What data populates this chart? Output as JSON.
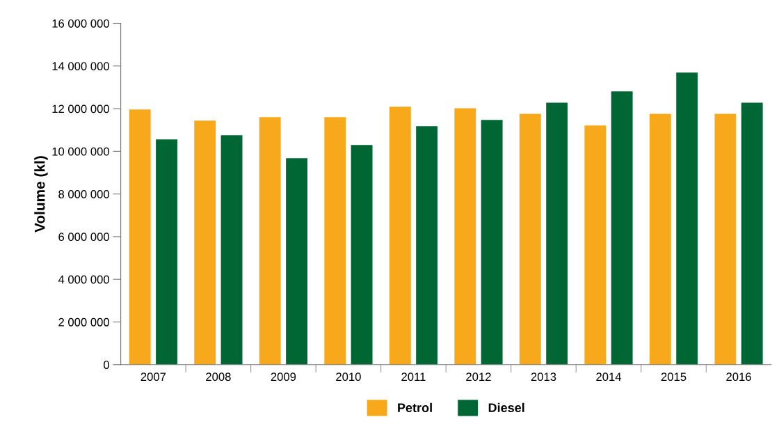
{
  "chart_data": {
    "type": "bar",
    "ylabel": "Volume (kl)",
    "categories": [
      "2007",
      "2008",
      "2009",
      "2010",
      "2011",
      "2012",
      "2013",
      "2014",
      "2015",
      "2016"
    ],
    "series": [
      {
        "name": "Petrol",
        "color": "#f7a81b",
        "values": [
          11960000,
          11440000,
          11600000,
          11600000,
          12090000,
          12020000,
          11760000,
          11210000,
          11760000,
          11760000
        ]
      },
      {
        "name": "Diesel",
        "color": "#006633",
        "values": [
          10560000,
          10750000,
          9680000,
          10300000,
          11180000,
          11470000,
          12280000,
          12810000,
          13690000,
          12280000
        ]
      }
    ],
    "ylim": [
      0,
      16000000
    ],
    "yticks": [
      0,
      {
        "value": 2000000,
        "label": "2 000 000"
      },
      {
        "value": 4000000,
        "label": "4 000 000"
      },
      {
        "value": 6000000,
        "label": "6 000 000"
      },
      {
        "value": 8000000,
        "label": "8 000 000"
      },
      {
        "value": 10000000,
        "label": "10 000 000"
      },
      {
        "value": 12000000,
        "label": "12 000 000"
      },
      {
        "value": 14000000,
        "label": "14 000 000"
      },
      {
        "value": 16000000,
        "label": "16 000 000"
      }
    ],
    "legend": "bottom"
  }
}
